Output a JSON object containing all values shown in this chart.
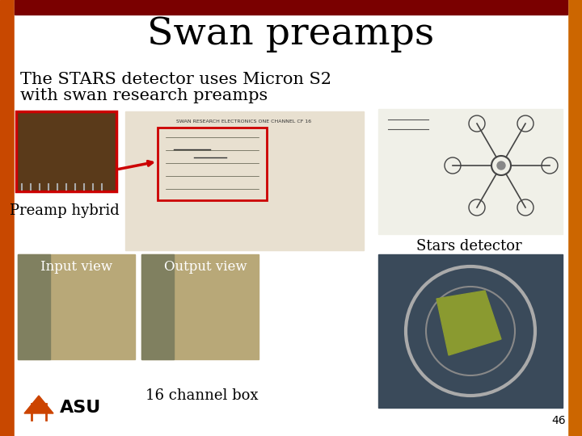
{
  "title": "Swan preamps",
  "title_fontsize": 34,
  "title_font": "serif",
  "bg_color": "#ffffff",
  "text_line1": "The STARS detector uses Micron S2",
  "text_line2": "with swan research preamps",
  "text_fontsize": 15,
  "label_preamp": "Preamp hybrid",
  "label_stars": "Stars detector",
  "label_input": "Input view",
  "label_output": "Output view",
  "label_channel": "16 channel box",
  "label_asu": "ASU",
  "page_number": "46",
  "label_fontsize": 13,
  "small_fontsize": 12,
  "flame_left": "#c84800",
  "flame_right": "#cc6600",
  "dark_red_top": "#7a0000",
  "img_preamp_color": "#5a3a1a",
  "img_circuit_color": "#e8e0d0",
  "img_stars_diagram_color": "#f0f0e8",
  "img_input_color": "#b8a878",
  "img_output_color": "#b8a878",
  "img_detector_color": "#3a4a5a",
  "red_box_color": "#cc0000",
  "arrow_color": "#cc0000",
  "asu_color": "#cc4400"
}
